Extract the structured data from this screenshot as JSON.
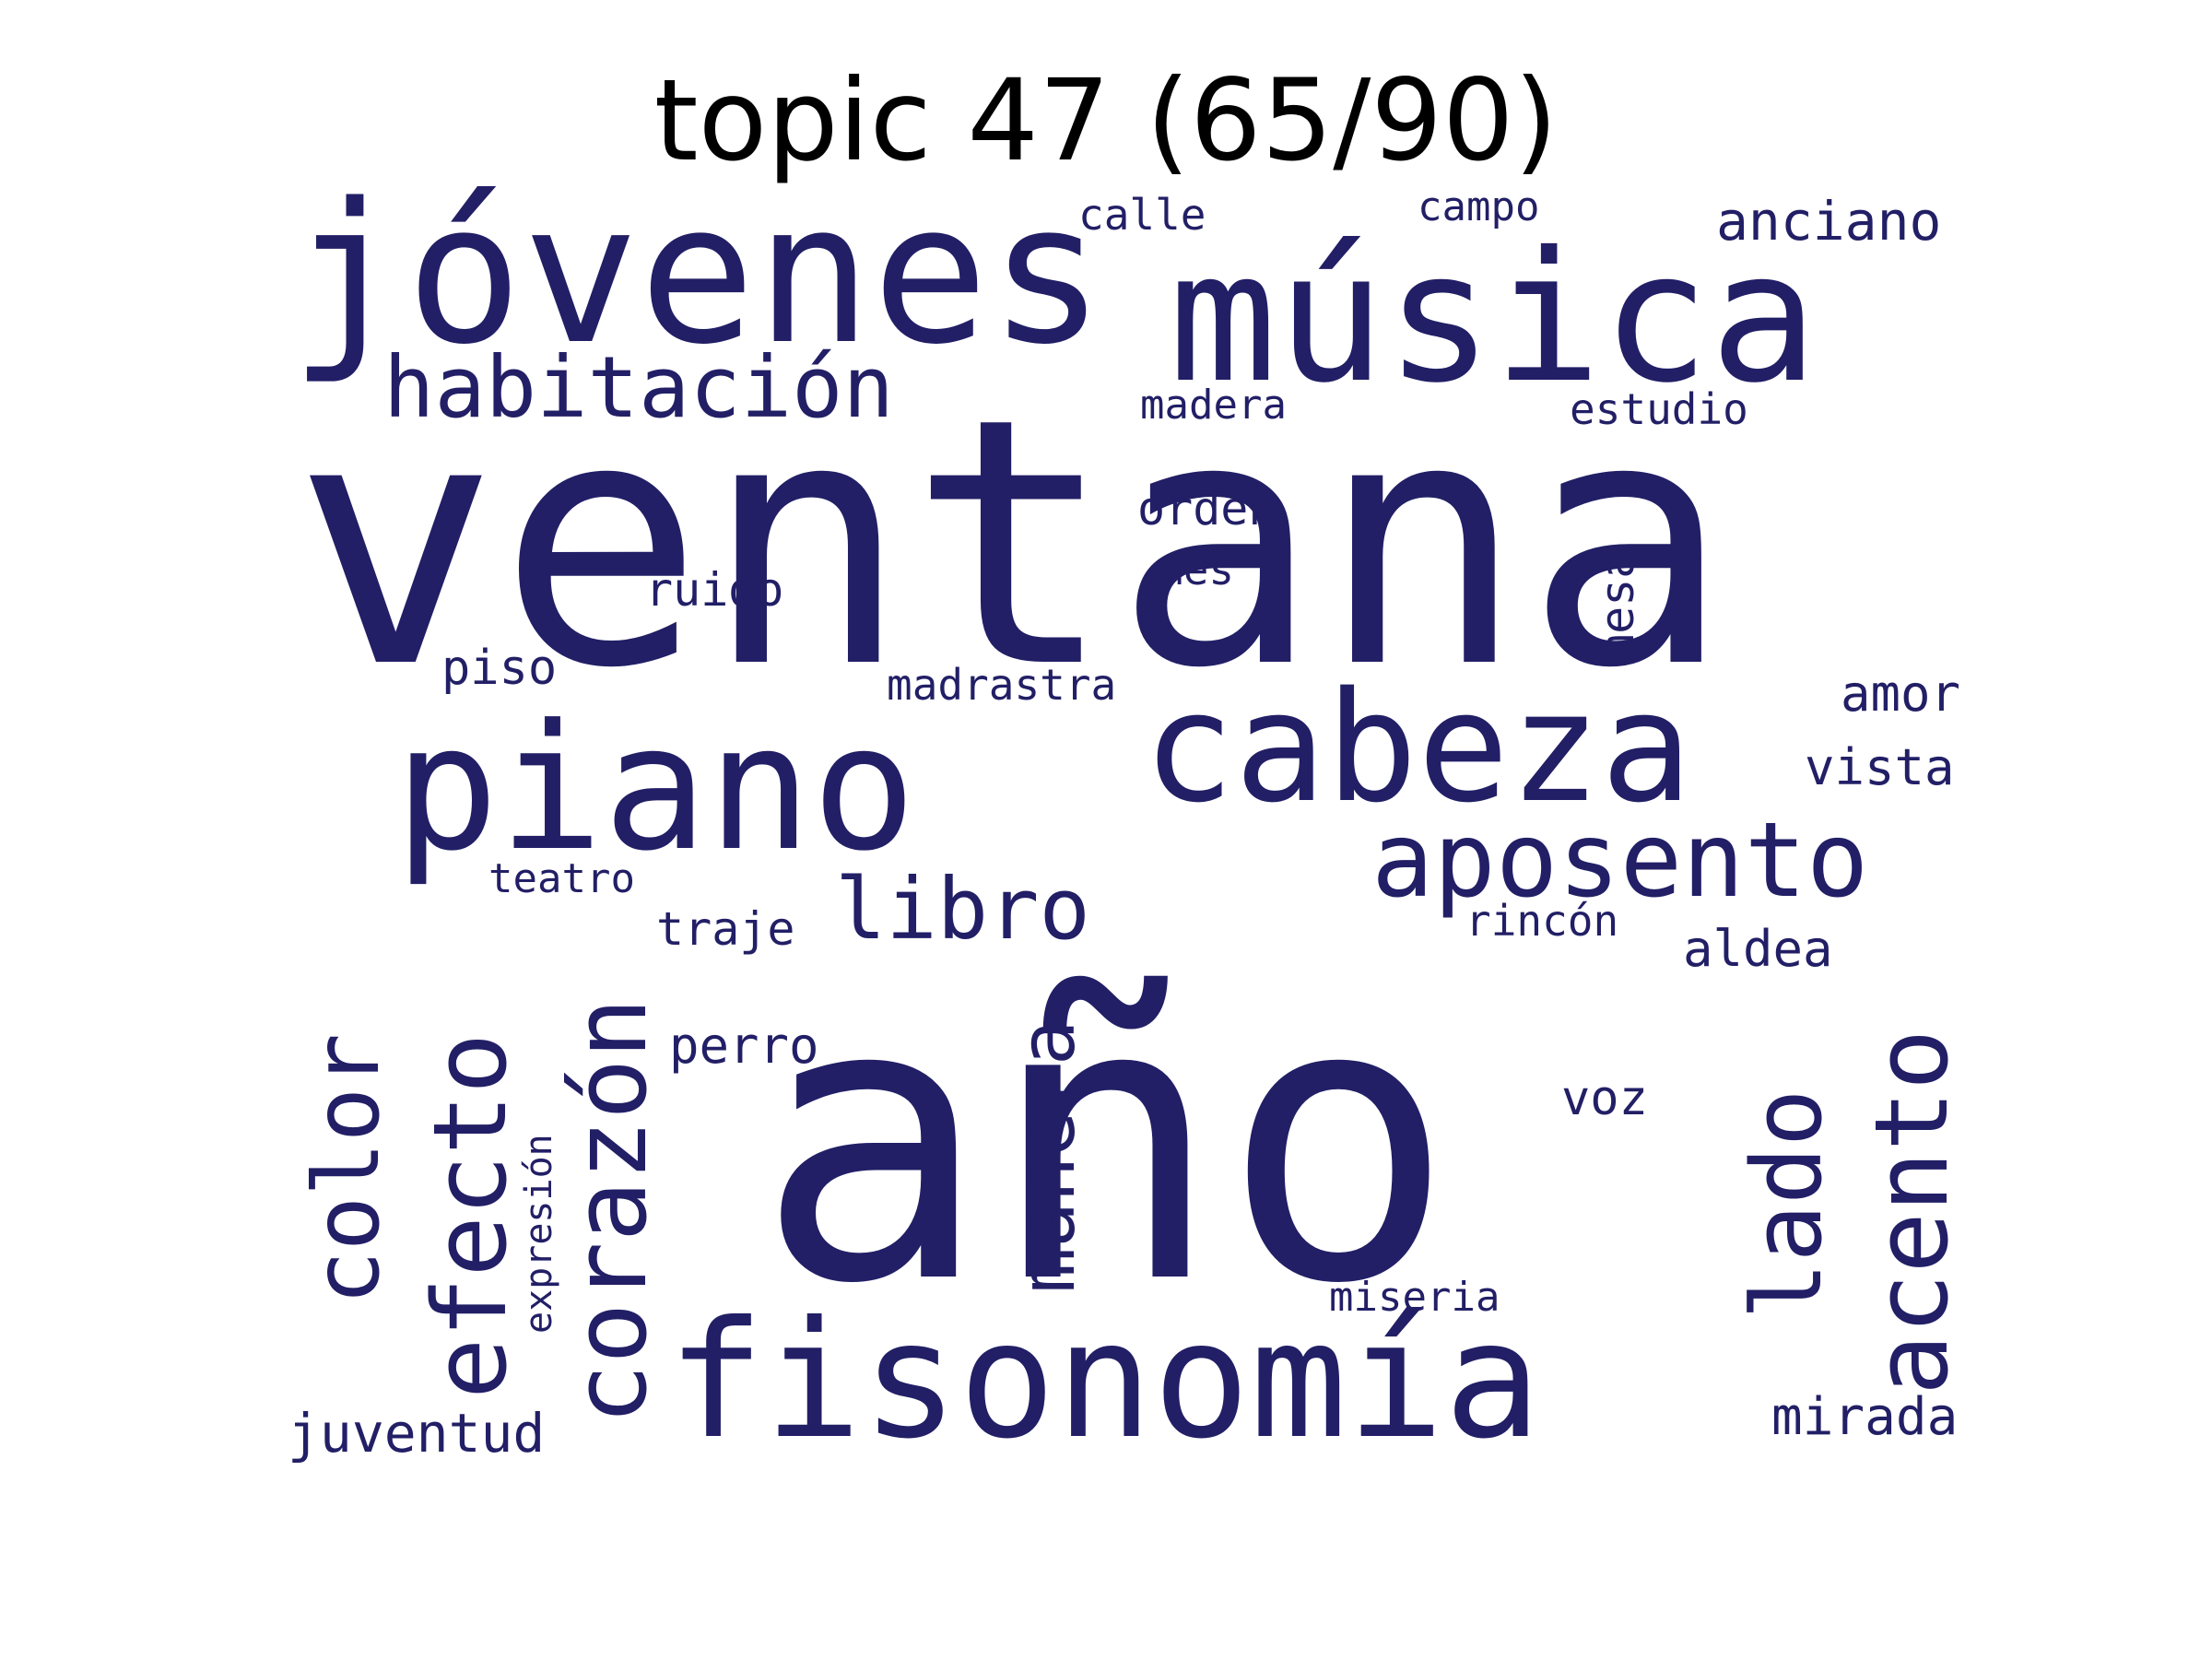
{
  "title": "topic 47 (65/90)",
  "word_color": "#221f66",
  "background_color": "#ffffff",
  "words": [
    {
      "text": "año",
      "rotated": false
    },
    {
      "text": "ventana",
      "rotated": false
    },
    {
      "text": "música",
      "rotated": false
    },
    {
      "text": "jóvenes",
      "rotated": false
    },
    {
      "text": "piano",
      "rotated": false
    },
    {
      "text": "cabeza",
      "rotated": false
    },
    {
      "text": "fisonomía",
      "rotated": false
    },
    {
      "text": "aposento",
      "rotated": false
    },
    {
      "text": "habitación",
      "rotated": false
    },
    {
      "text": "libro",
      "rotated": false
    },
    {
      "text": "acento",
      "rotated": true
    },
    {
      "text": "corazón",
      "rotated": true
    },
    {
      "text": "efecto",
      "rotated": true
    },
    {
      "text": "color",
      "rotated": true
    },
    {
      "text": "lado",
      "rotated": true
    },
    {
      "text": "manera",
      "rotated": true
    },
    {
      "text": "anciano",
      "rotated": false
    },
    {
      "text": "juventud",
      "rotated": false
    },
    {
      "text": "mirada",
      "rotated": false
    },
    {
      "text": "amor",
      "rotated": false
    },
    {
      "text": "vista",
      "rotated": false
    },
    {
      "text": "aldea",
      "rotated": false
    },
    {
      "text": "perro",
      "rotated": false
    },
    {
      "text": "ruido",
      "rotated": false
    },
    {
      "text": "calle",
      "rotated": false
    },
    {
      "text": "orden",
      "rotated": false
    },
    {
      "text": "piso",
      "rotated": false
    },
    {
      "text": "traje",
      "rotated": false
    },
    {
      "text": "voz",
      "rotated": false
    },
    {
      "text": "rincón",
      "rotated": false
    },
    {
      "text": "madrastra",
      "rotated": false
    },
    {
      "text": "mes",
      "rotated": false
    },
    {
      "text": "estudio",
      "rotated": false
    },
    {
      "text": "madera",
      "rotated": false
    },
    {
      "text": "mesa",
      "rotated": true
    },
    {
      "text": "miseria",
      "rotated": false
    },
    {
      "text": "teatro",
      "rotated": false
    },
    {
      "text": "campo",
      "rotated": false
    },
    {
      "text": "expresión",
      "rotated": true
    }
  ]
}
